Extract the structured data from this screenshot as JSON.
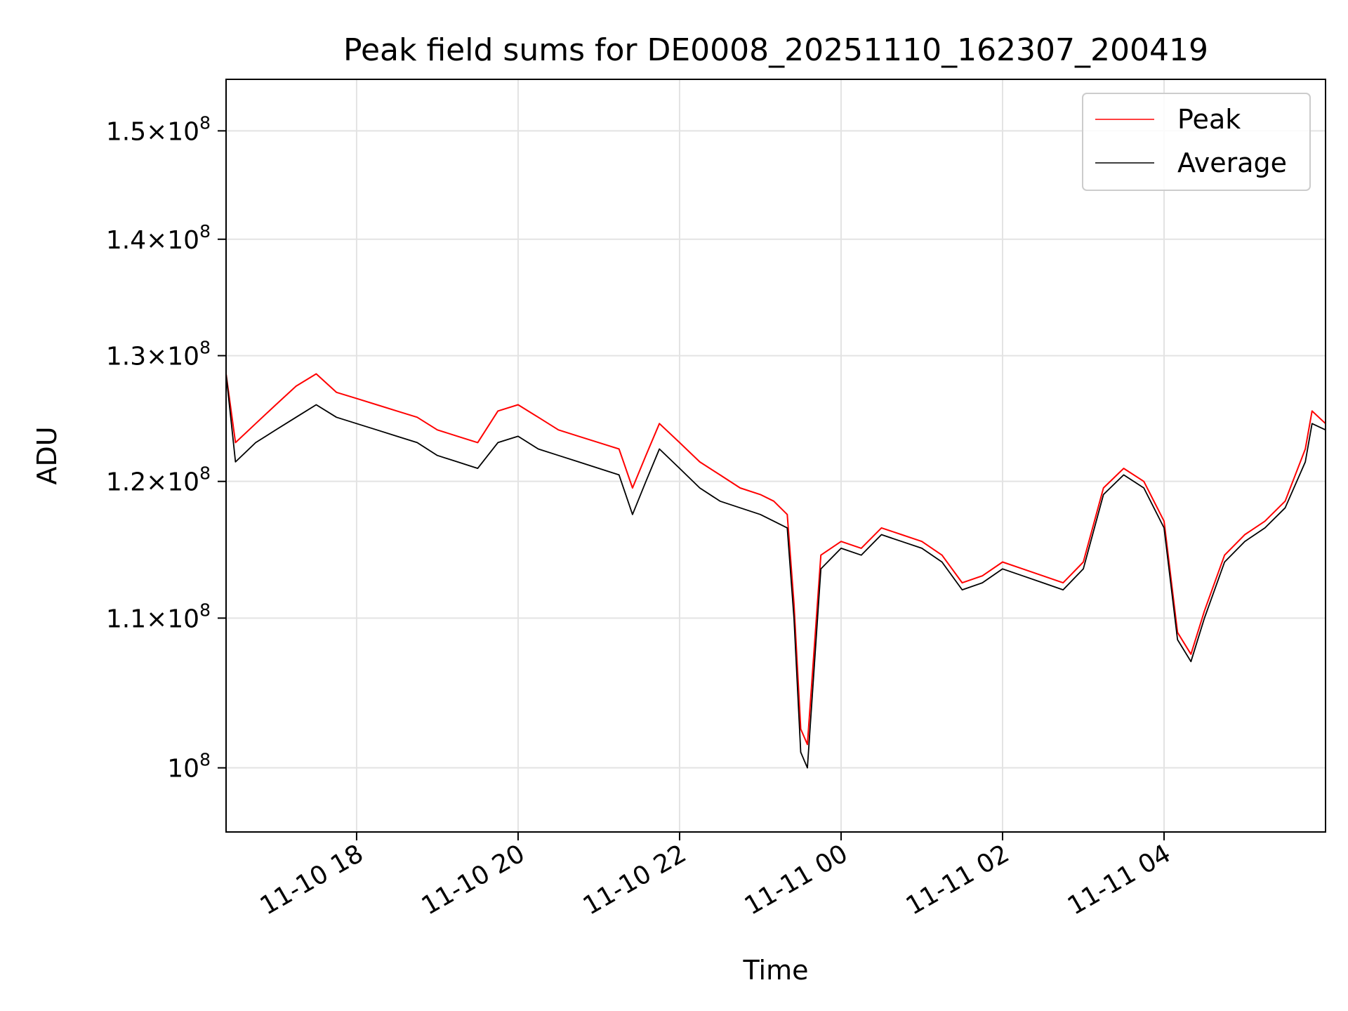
{
  "chart_data": {
    "type": "line",
    "title": "Peak field sums for DE0008_20251110_162307_200419",
    "xlabel": "Time",
    "ylabel": "ADU",
    "y_scale": "log",
    "xlim": [
      "2025-11-10 16:23",
      "2025-11-11 06:00"
    ],
    "ylim": [
      96000000,
      155000000
    ],
    "grid": true,
    "legend_position": "upper right",
    "x_ticks": [
      "2025-11-10 18:00",
      "2025-11-10 20:00",
      "2025-11-10 22:00",
      "2025-11-11 00:00",
      "2025-11-11 02:00",
      "2025-11-11 04:00"
    ],
    "x_tick_labels": [
      "11-10 18",
      "11-10 20",
      "11-10 22",
      "11-11 00",
      "11-11 02",
      "11-11 04"
    ],
    "y_ticks": [
      100000000,
      110000000,
      120000000,
      130000000,
      140000000,
      150000000
    ],
    "y_tick_labels": [
      {
        "mantissa": "",
        "base": "10",
        "exp": "8"
      },
      {
        "mantissa": "1.1×",
        "base": "10",
        "exp": "8"
      },
      {
        "mantissa": "1.2×",
        "base": "10",
        "exp": "8"
      },
      {
        "mantissa": "1.3×",
        "base": "10",
        "exp": "8"
      },
      {
        "mantissa": "1.4×",
        "base": "10",
        "exp": "8"
      },
      {
        "mantissa": "1.5×",
        "base": "10",
        "exp": "8"
      }
    ],
    "x": [
      "2025-11-10 16:23",
      "2025-11-10 16:30",
      "2025-11-10 16:45",
      "2025-11-10 17:00",
      "2025-11-10 17:15",
      "2025-11-10 17:30",
      "2025-11-10 17:45",
      "2025-11-10 18:00",
      "2025-11-10 18:15",
      "2025-11-10 18:30",
      "2025-11-10 18:45",
      "2025-11-10 19:00",
      "2025-11-10 19:15",
      "2025-11-10 19:30",
      "2025-11-10 19:45",
      "2025-11-10 20:00",
      "2025-11-10 20:15",
      "2025-11-10 20:30",
      "2025-11-10 20:45",
      "2025-11-10 21:00",
      "2025-11-10 21:15",
      "2025-11-10 21:25",
      "2025-11-10 21:35",
      "2025-11-10 21:45",
      "2025-11-10 22:00",
      "2025-11-10 22:15",
      "2025-11-10 22:30",
      "2025-11-10 22:45",
      "2025-11-10 23:00",
      "2025-11-10 23:10",
      "2025-11-10 23:20",
      "2025-11-10 23:25",
      "2025-11-10 23:30",
      "2025-11-10 23:35",
      "2025-11-10 23:45",
      "2025-11-11 00:00",
      "2025-11-11 00:15",
      "2025-11-11 00:30",
      "2025-11-11 00:45",
      "2025-11-11 01:00",
      "2025-11-11 01:15",
      "2025-11-11 01:30",
      "2025-11-11 01:45",
      "2025-11-11 02:00",
      "2025-11-11 02:15",
      "2025-11-11 02:30",
      "2025-11-11 02:45",
      "2025-11-11 03:00",
      "2025-11-11 03:15",
      "2025-11-11 03:30",
      "2025-11-11 03:45",
      "2025-11-11 04:00",
      "2025-11-11 04:10",
      "2025-11-11 04:20",
      "2025-11-11 04:30",
      "2025-11-11 04:45",
      "2025-11-11 05:00",
      "2025-11-11 05:15",
      "2025-11-11 05:30",
      "2025-11-11 05:45",
      "2025-11-11 05:50",
      "2025-11-11 06:00"
    ],
    "series": [
      {
        "name": "Peak",
        "color": "#ff0000",
        "values": [
          128500000,
          123000000,
          124500000,
          126000000,
          127500000,
          128500000,
          127000000,
          126500000,
          126000000,
          125500000,
          125000000,
          124000000,
          123500000,
          123000000,
          125500000,
          126000000,
          125000000,
          124000000,
          123500000,
          123000000,
          122500000,
          119500000,
          122000000,
          124500000,
          123000000,
          121500000,
          120500000,
          119500000,
          119000000,
          118500000,
          117500000,
          111000000,
          102500000,
          101500000,
          114500000,
          115500000,
          115000000,
          116500000,
          116000000,
          115500000,
          114500000,
          112500000,
          113000000,
          114000000,
          113500000,
          113000000,
          112500000,
          114000000,
          119500000,
          121000000,
          120000000,
          117000000,
          109000000,
          107500000,
          110500000,
          114500000,
          116000000,
          117000000,
          118500000,
          122500000,
          125500000,
          124500000
        ]
      },
      {
        "name": "Average",
        "color": "#000000",
        "values": [
          128500000,
          121500000,
          123000000,
          124000000,
          125000000,
          126000000,
          125000000,
          124500000,
          124000000,
          123500000,
          123000000,
          122000000,
          121500000,
          121000000,
          123000000,
          123500000,
          122500000,
          122000000,
          121500000,
          121000000,
          120500000,
          117500000,
          120000000,
          122500000,
          121000000,
          119500000,
          118500000,
          118000000,
          117500000,
          117000000,
          116500000,
          110000000,
          101000000,
          100000000,
          113500000,
          115000000,
          114500000,
          116000000,
          115500000,
          115000000,
          114000000,
          112000000,
          112500000,
          113500000,
          113000000,
          112500000,
          112000000,
          113500000,
          119000000,
          120500000,
          119500000,
          116500000,
          108500000,
          107000000,
          110000000,
          114000000,
          115500000,
          116500000,
          118000000,
          121500000,
          124500000,
          124000000
        ]
      }
    ]
  }
}
